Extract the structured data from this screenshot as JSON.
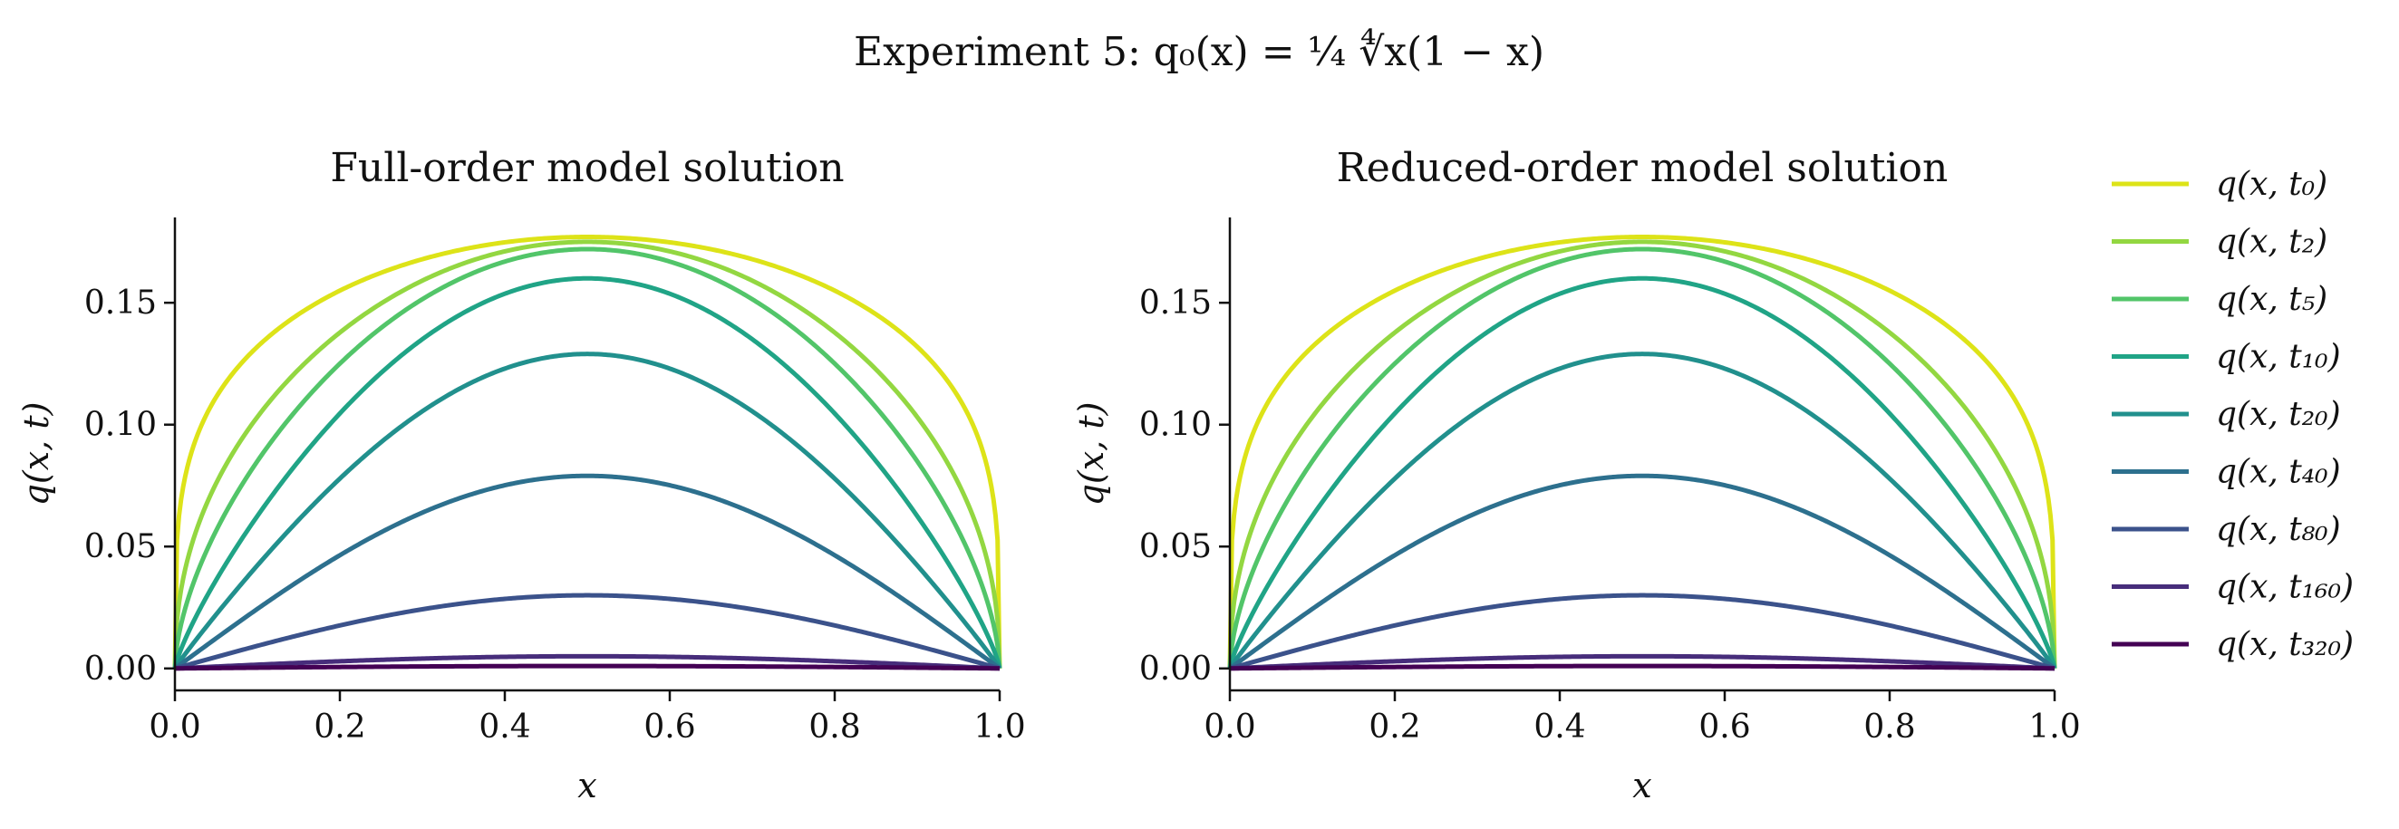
{
  "figure": {
    "suptitle": "Experiment 5: q₀(x) = ¼ ∜x(1 − x)"
  },
  "chart_data": [
    {
      "type": "line",
      "title": "Full-order model solution",
      "xlabel": "x",
      "ylabel": "q(x, t)",
      "xlim": [
        0.0,
        1.0
      ],
      "ylim": [
        -0.009,
        0.185
      ],
      "xticks": [
        "0.0",
        "0.2",
        "0.4",
        "0.6",
        "0.8",
        "1.0"
      ],
      "yticks": [
        "0.00",
        "0.05",
        "0.10",
        "0.15"
      ],
      "grid": false,
      "series_peaks": [
        {
          "name": "q(x, t₀)",
          "peak": 0.177,
          "color": "#dde318"
        },
        {
          "name": "q(x, t₂)",
          "peak": 0.175,
          "color": "#93d741"
        },
        {
          "name": "q(x, t₅)",
          "peak": 0.172,
          "color": "#52c569"
        },
        {
          "name": "q(x, t₁₀)",
          "peak": 0.16,
          "color": "#20a486"
        },
        {
          "name": "q(x, t₂₀)",
          "peak": 0.129,
          "color": "#21908d"
        },
        {
          "name": "q(x, t₄₀)",
          "peak": 0.079,
          "color": "#2d708e"
        },
        {
          "name": "q(x, t₈₀)",
          "peak": 0.03,
          "color": "#3b528b"
        },
        {
          "name": "q(x, t₁₆₀)",
          "peak": 0.005,
          "color": "#472d7b"
        },
        {
          "name": "q(x, t₃₂₀)",
          "peak": 0.001,
          "color": "#440154"
        }
      ]
    },
    {
      "type": "line",
      "title": "Reduced-order model solution",
      "xlabel": "x",
      "ylabel": "q(x, t)",
      "xlim": [
        0.0,
        1.0
      ],
      "ylim": [
        -0.009,
        0.185
      ],
      "xticks": [
        "0.0",
        "0.2",
        "0.4",
        "0.6",
        "0.8",
        "1.0"
      ],
      "yticks": [
        "0.00",
        "0.05",
        "0.10",
        "0.15"
      ],
      "grid": false,
      "series_peaks": [
        {
          "name": "q(x, t₀)",
          "peak": 0.177,
          "color": "#dde318"
        },
        {
          "name": "q(x, t₂)",
          "peak": 0.175,
          "color": "#93d741"
        },
        {
          "name": "q(x, t₅)",
          "peak": 0.172,
          "color": "#52c569"
        },
        {
          "name": "q(x, t₁₀)",
          "peak": 0.16,
          "color": "#20a486"
        },
        {
          "name": "q(x, t₂₀)",
          "peak": 0.129,
          "color": "#21908d"
        },
        {
          "name": "q(x, t₄₀)",
          "peak": 0.079,
          "color": "#2d708e"
        },
        {
          "name": "q(x, t₈₀)",
          "peak": 0.03,
          "color": "#3b528b"
        },
        {
          "name": "q(x, t₁₆₀)",
          "peak": 0.005,
          "color": "#472d7b"
        },
        {
          "name": "q(x, t₃₂₀)",
          "peak": 0.001,
          "color": "#440154"
        }
      ]
    }
  ],
  "legend": {
    "placement": "right",
    "entries": [
      {
        "label": "q(x, t₀)",
        "color": "#dde318"
      },
      {
        "label": "q(x, t₂)",
        "color": "#93d741"
      },
      {
        "label": "q(x, t₅)",
        "color": "#52c569"
      },
      {
        "label": "q(x, t₁₀)",
        "color": "#20a486"
      },
      {
        "label": "q(x, t₂₀)",
        "color": "#21908d"
      },
      {
        "label": "q(x, t₄₀)",
        "color": "#2d708e"
      },
      {
        "label": "q(x, t₈₀)",
        "color": "#3b528b"
      },
      {
        "label": "q(x, t₁₆₀)",
        "color": "#472d7b"
      },
      {
        "label": "q(x, t₃₂₀)",
        "color": "#440154"
      }
    ]
  }
}
